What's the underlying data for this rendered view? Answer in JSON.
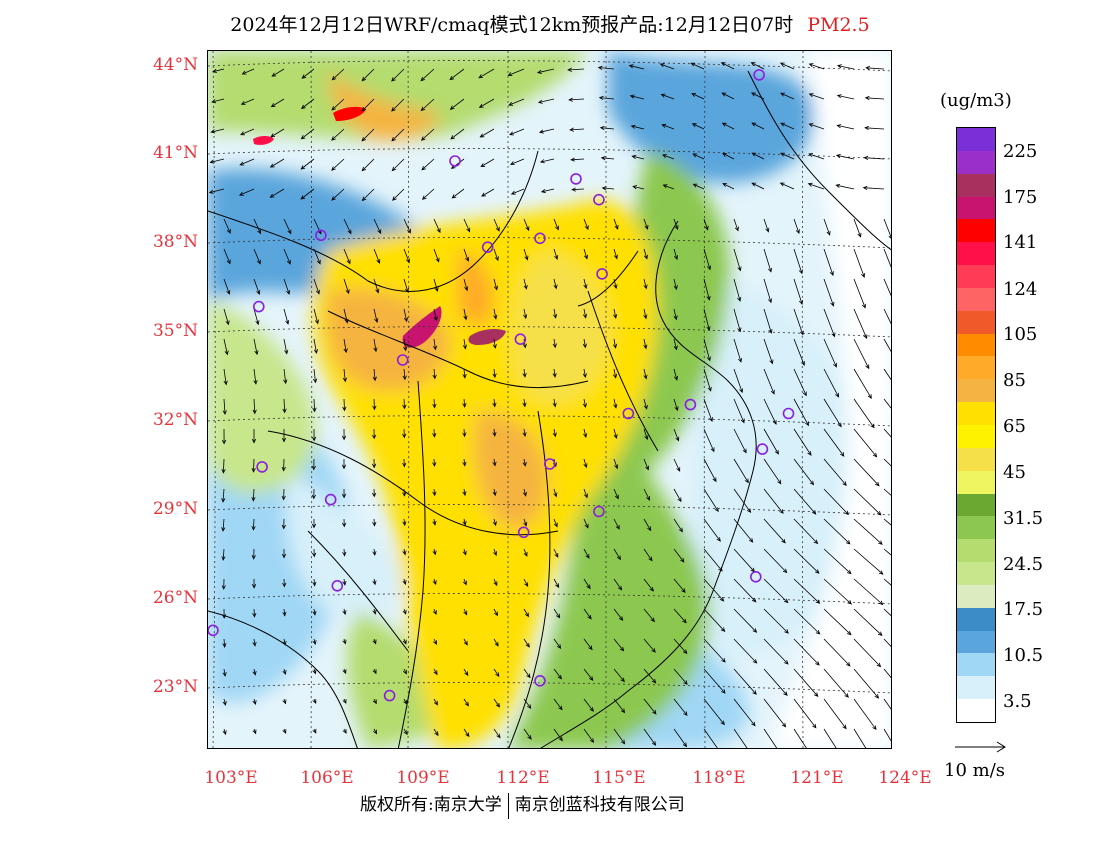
{
  "title": {
    "main": "2024年12月12日WRF/cmaq模式12km预报产品:12月12日07时",
    "pollutant": "PM2.5"
  },
  "lat_labels": [
    "44°N",
    "41°N",
    "38°N",
    "35°N",
    "32°N",
    "29°N",
    "26°N",
    "23°N"
  ],
  "lon_labels": [
    "103°E",
    "106°E",
    "109°E",
    "112°E",
    "115°E",
    "118°E",
    "121°E",
    "124°E"
  ],
  "colorbar": {
    "unit": "(ug/m3)",
    "labels": [
      "225",
      "175",
      "141",
      "124",
      "105",
      "85",
      "65",
      "45",
      "31.5",
      "24.5",
      "17.5",
      "10.5",
      "3.5"
    ],
    "colors": [
      "#7b2fd6",
      "#9b30c8",
      "#a8305f",
      "#c8146e",
      "#ff0000",
      "#ff1048",
      "#ff3b55",
      "#ff6464",
      "#f05a28",
      "#ff8c00",
      "#ffaa28",
      "#f5b441",
      "#ffe000",
      "#fff200",
      "#f6e04a",
      "#eef560",
      "#6aa832",
      "#8cc850",
      "#b4dc6e",
      "#c8e68c",
      "#dcebc0",
      "#3c8cc8",
      "#5aa5dc",
      "#a0d7f5",
      "#d7f0fa",
      "#ffffff"
    ]
  },
  "wind_reference": {
    "label": "10 m/s"
  },
  "cities": [
    {
      "lon": 119.7,
      "lat": 43.7
    },
    {
      "lon": 110.4,
      "lat": 40.8
    },
    {
      "lon": 114.1,
      "lat": 40.2
    },
    {
      "lon": 114.8,
      "lat": 39.5
    },
    {
      "lon": 106.3,
      "lat": 38.3
    },
    {
      "lon": 111.4,
      "lat": 37.9
    },
    {
      "lon": 113.0,
      "lat": 38.2
    },
    {
      "lon": 114.9,
      "lat": 37.0
    },
    {
      "lon": 104.4,
      "lat": 35.9
    },
    {
      "lon": 112.4,
      "lat": 34.8
    },
    {
      "lon": 108.8,
      "lat": 34.1
    },
    {
      "lon": 117.6,
      "lat": 32.6
    },
    {
      "lon": 115.7,
      "lat": 32.3
    },
    {
      "lon": 120.6,
      "lat": 32.3
    },
    {
      "lon": 119.8,
      "lat": 31.1
    },
    {
      "lon": 104.5,
      "lat": 30.5
    },
    {
      "lon": 113.3,
      "lat": 30.6
    },
    {
      "lon": 106.6,
      "lat": 29.4
    },
    {
      "lon": 114.8,
      "lat": 29.0
    },
    {
      "lon": 112.5,
      "lat": 28.3
    },
    {
      "lon": 106.8,
      "lat": 26.5
    },
    {
      "lon": 119.6,
      "lat": 26.8
    },
    {
      "lon": 103.0,
      "lat": 25.0
    },
    {
      "lon": 113.0,
      "lat": 23.3
    },
    {
      "lon": 108.4,
      "lat": 22.8
    }
  ],
  "copyright": {
    "left": "版权所有:南京大学",
    "right": "南京创蓝科技有限公司"
  }
}
